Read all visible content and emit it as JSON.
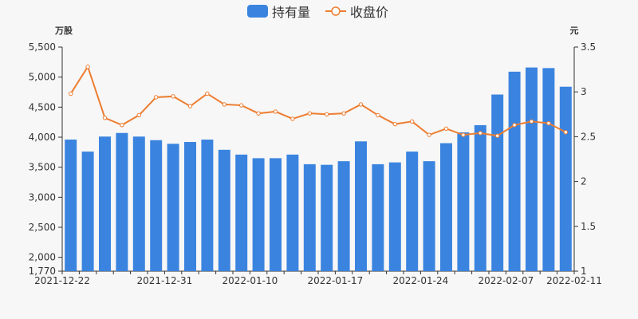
{
  "chart_data": {
    "type": "bar+line",
    "legend": {
      "position": "top-center",
      "items": [
        {
          "label": "持有量",
          "shape": "bar",
          "color": "#3a84e0"
        },
        {
          "label": "收盘价",
          "shape": "line-circle",
          "color": "#ed7d31"
        }
      ]
    },
    "left_axis": {
      "unit": "万股",
      "min": 1770,
      "max": 5500,
      "ticks": [
        1770,
        2000,
        2500,
        3000,
        3500,
        4000,
        4500,
        5000,
        5500
      ],
      "tick_labels": [
        "1,770",
        "2,000",
        "2,500",
        "3,000",
        "3,500",
        "4,000",
        "4,500",
        "5,000",
        "5,500"
      ]
    },
    "right_axis": {
      "unit": "元",
      "min": 1,
      "max": 3.5,
      "ticks": [
        1,
        1.5,
        2,
        2.5,
        3,
        3.5
      ],
      "tick_labels": [
        "1",
        "1.5",
        "2",
        "2.5",
        "3",
        "3.5"
      ]
    },
    "x_tick_labels": [
      {
        "index": 0,
        "label": "2021-12-22"
      },
      {
        "index": 6,
        "label": "2021-12-31"
      },
      {
        "index": 11,
        "label": "2022-01-10"
      },
      {
        "index": 16,
        "label": "2022-01-17"
      },
      {
        "index": 21,
        "label": "2022-01-24"
      },
      {
        "index": 26,
        "label": "2022-02-07"
      },
      {
        "index": 30,
        "label": "2022-02-11"
      }
    ],
    "series": [
      {
        "name": "持有量",
        "type": "bar",
        "color": "#3a84e0",
        "values": [
          3960,
          3760,
          4010,
          4070,
          4010,
          3950,
          3890,
          3920,
          3960,
          3790,
          3710,
          3650,
          3650,
          3710,
          3550,
          3540,
          3600,
          3930,
          3550,
          3580,
          3760,
          3600,
          3900,
          4080,
          4200,
          4710,
          5090,
          5160,
          5150,
          4840
        ]
      },
      {
        "name": "收盘价",
        "type": "line",
        "axis": "right",
        "color": "#ed7d31",
        "values": [
          2.98,
          3.28,
          2.71,
          2.63,
          2.74,
          2.94,
          2.95,
          2.84,
          2.98,
          2.86,
          2.85,
          2.76,
          2.78,
          2.7,
          2.76,
          2.75,
          2.76,
          2.86,
          2.74,
          2.64,
          2.67,
          2.52,
          2.59,
          2.52,
          2.54,
          2.51,
          2.63,
          2.67,
          2.65,
          2.55
        ]
      }
    ]
  }
}
